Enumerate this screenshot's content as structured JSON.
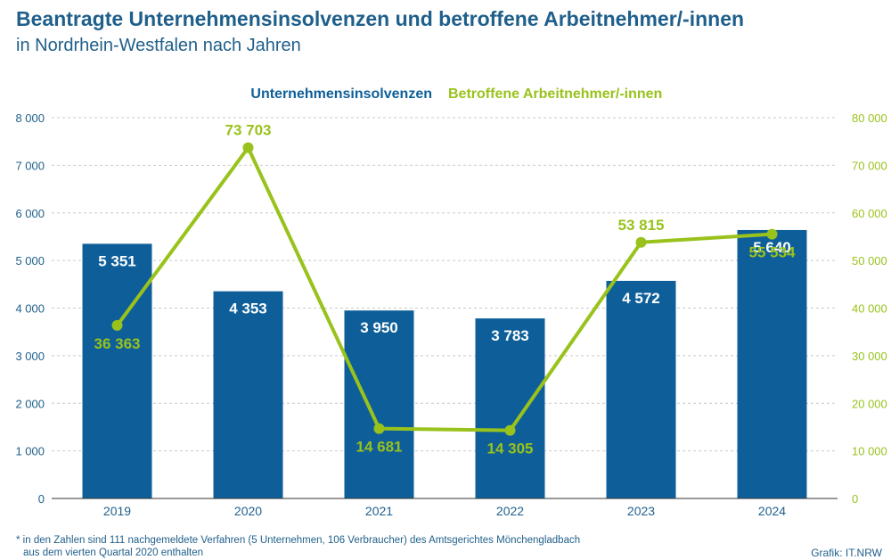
{
  "header": {
    "title": "Beantragte Unternehmensinsolvenzen und betroffene Arbeitnehmer/-innen",
    "subtitle": "in Nordrhein-Westfalen nach Jahren"
  },
  "footer": {
    "note_line1": "* in den Zahlen sind 111 nachgemeldete Verfahren (5 Unternehmen, 106 Verbraucher) des Amtsgerichtes Mönchengladbach",
    "note_line2": "aus dem vierten Quartal 2020 enthalten",
    "credit": "Grafik: IT.NRW"
  },
  "colors": {
    "bars": "#0e5f99",
    "line": "#99c21c",
    "text": "#1f5f8b",
    "grid": "#c9c9c9"
  },
  "chart_data": {
    "type": "bar",
    "categories": [
      "2019",
      "2020",
      "2021",
      "2022",
      "2023",
      "2024"
    ],
    "series": [
      {
        "name": "Unternehmensinsolvenzen",
        "type": "bar",
        "axis": "left",
        "values": [
          5351,
          4353,
          3950,
          3783,
          4572,
          5640
        ],
        "labels": [
          "5 351",
          "4 353",
          "3 950",
          "3 783",
          "4 572",
          "5 640"
        ]
      },
      {
        "name": "Betroffene Arbeitnehmer/-innen",
        "type": "line",
        "axis": "right",
        "values": [
          36363,
          73703,
          14681,
          14305,
          53815,
          55534
        ],
        "labels": [
          "36 363",
          "73 703",
          "14 681",
          "14 305",
          "53 815",
          "55 534"
        ]
      }
    ],
    "legend": [
      "Unternehmensinsolvenzen",
      "Betroffene Arbeitnehmer/-innen"
    ],
    "legend_position": "top",
    "y_left": {
      "range": [
        0,
        8000
      ],
      "ticks": [
        "0",
        "1 000",
        "2 000",
        "3 000",
        "4 000",
        "5 000",
        "6 000",
        "7 000",
        "8 000"
      ]
    },
    "y_right": {
      "range": [
        0,
        80000
      ],
      "ticks": [
        "0",
        "10 000",
        "20 000",
        "30 000",
        "40 000",
        "50 000",
        "60 000",
        "70 000",
        "80 000"
      ]
    },
    "grid": true
  }
}
